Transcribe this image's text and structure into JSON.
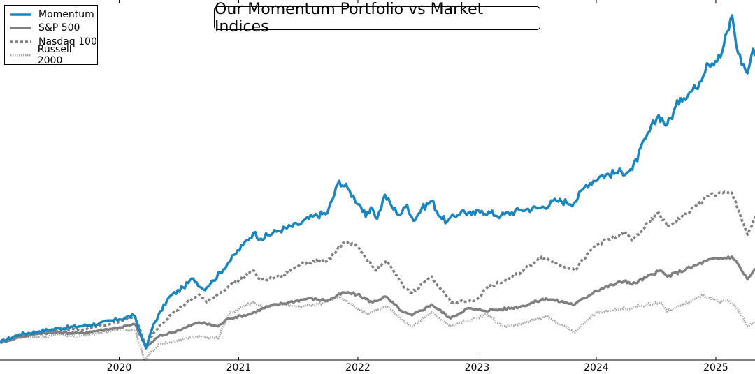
{
  "chart_data": {
    "type": "line",
    "title": "Our Momentum Portfolio vs Market Indices",
    "xlabel": "",
    "ylabel": "",
    "x_ticks": [
      "2020",
      "2021",
      "2022",
      "2023",
      "2024",
      "2025"
    ],
    "y_ticks_shown": false,
    "legend_position": "top-left",
    "x_range": [
      "2019-01",
      "2025-05"
    ],
    "y_range": [
      0.85,
      4.4
    ],
    "series": [
      {
        "name": "Momentum",
        "color": "#1a86c0",
        "style": "solid",
        "points": [
          [
            "2019-01-01",
            1.0
          ],
          [
            "2019-03-01",
            1.08
          ],
          [
            "2019-05-01",
            1.11
          ],
          [
            "2019-07-01",
            1.14
          ],
          [
            "2019-09-01",
            1.16
          ],
          [
            "2019-11-01",
            1.19
          ],
          [
            "2020-01-01",
            1.23
          ],
          [
            "2020-02-15",
            1.27
          ],
          [
            "2020-03-23",
            0.94
          ],
          [
            "2020-04-15",
            1.18
          ],
          [
            "2020-06-01",
            1.45
          ],
          [
            "2020-07-15",
            1.55
          ],
          [
            "2020-08-15",
            1.64
          ],
          [
            "2020-09-15",
            1.53
          ],
          [
            "2020-10-15",
            1.62
          ],
          [
            "2020-12-01",
            1.8
          ],
          [
            "2021-01-15",
            1.98
          ],
          [
            "2021-02-15",
            2.1
          ],
          [
            "2021-03-10",
            2.04
          ],
          [
            "2021-05-01",
            2.12
          ],
          [
            "2021-07-01",
            2.18
          ],
          [
            "2021-08-15",
            2.26
          ],
          [
            "2021-09-30",
            2.3
          ],
          [
            "2021-11-05",
            2.62
          ],
          [
            "2021-12-01",
            2.54
          ],
          [
            "2022-01-10",
            2.36
          ],
          [
            "2022-01-25",
            2.26
          ],
          [
            "2022-02-15",
            2.34
          ],
          [
            "2022-03-01",
            2.24
          ],
          [
            "2022-03-25",
            2.48
          ],
          [
            "2022-04-15",
            2.36
          ],
          [
            "2022-05-10",
            2.28
          ],
          [
            "2022-06-01",
            2.38
          ],
          [
            "2022-06-20",
            2.22
          ],
          [
            "2022-07-15",
            2.34
          ],
          [
            "2022-08-15",
            2.42
          ],
          [
            "2022-09-10",
            2.26
          ],
          [
            "2022-10-01",
            2.21
          ],
          [
            "2022-11-15",
            2.32
          ],
          [
            "2022-12-15",
            2.28
          ],
          [
            "2023-01-15",
            2.32
          ],
          [
            "2023-03-15",
            2.27
          ],
          [
            "2023-05-15",
            2.33
          ],
          [
            "2023-07-15",
            2.35
          ],
          [
            "2023-09-01",
            2.42
          ],
          [
            "2023-10-25",
            2.4
          ],
          [
            "2023-12-01",
            2.58
          ],
          [
            "2024-01-15",
            2.67
          ],
          [
            "2024-03-01",
            2.7
          ],
          [
            "2024-04-20",
            2.73
          ],
          [
            "2024-06-01",
            3.05
          ],
          [
            "2024-07-10",
            3.28
          ],
          [
            "2024-08-05",
            3.18
          ],
          [
            "2024-09-15",
            3.45
          ],
          [
            "2024-11-01",
            3.55
          ],
          [
            "2024-12-05",
            3.8
          ],
          [
            "2025-01-15",
            3.86
          ],
          [
            "2025-02-20",
            4.28
          ],
          [
            "2025-03-10",
            3.9
          ],
          [
            "2025-04-08",
            3.7
          ],
          [
            "2025-04-20",
            3.88
          ],
          [
            "2025-05-15",
            4.02
          ]
        ]
      },
      {
        "name": "S&P 500",
        "color": "#808080",
        "style": "solid",
        "points": [
          [
            "2019-01-01",
            1.0
          ],
          [
            "2019-03-01",
            1.05
          ],
          [
            "2019-05-01",
            1.09
          ],
          [
            "2019-07-01",
            1.1
          ],
          [
            "2019-09-01",
            1.09
          ],
          [
            "2019-11-01",
            1.12
          ],
          [
            "2020-01-01",
            1.15
          ],
          [
            "2020-02-19",
            1.18
          ],
          [
            "2020-03-23",
            0.95
          ],
          [
            "2020-05-01",
            1.06
          ],
          [
            "2020-07-01",
            1.12
          ],
          [
            "2020-09-01",
            1.2
          ],
          [
            "2020-10-30",
            1.16
          ],
          [
            "2020-12-01",
            1.24
          ],
          [
            "2021-02-01",
            1.28
          ],
          [
            "2021-04-01",
            1.36
          ],
          [
            "2021-06-01",
            1.4
          ],
          [
            "2021-08-01",
            1.44
          ],
          [
            "2021-10-01",
            1.42
          ],
          [
            "2021-11-20",
            1.5
          ],
          [
            "2021-12-30",
            1.48
          ],
          [
            "2022-02-15",
            1.4
          ],
          [
            "2022-03-25",
            1.46
          ],
          [
            "2022-05-20",
            1.3
          ],
          [
            "2022-06-16",
            1.27
          ],
          [
            "2022-08-15",
            1.38
          ],
          [
            "2022-10-12",
            1.24
          ],
          [
            "2022-12-01",
            1.34
          ],
          [
            "2023-01-15",
            1.32
          ],
          [
            "2023-03-15",
            1.33
          ],
          [
            "2023-05-15",
            1.36
          ],
          [
            "2023-07-31",
            1.44
          ],
          [
            "2023-10-27",
            1.38
          ],
          [
            "2023-12-31",
            1.52
          ],
          [
            "2024-03-31",
            1.62
          ],
          [
            "2024-04-19",
            1.58
          ],
          [
            "2024-07-15",
            1.72
          ],
          [
            "2024-08-05",
            1.66
          ],
          [
            "2024-10-15",
            1.75
          ],
          [
            "2024-12-05",
            1.82
          ],
          [
            "2025-02-19",
            1.86
          ],
          [
            "2025-03-15",
            1.76
          ],
          [
            "2025-04-08",
            1.63
          ],
          [
            "2025-04-30",
            1.73
          ],
          [
            "2025-05-15",
            1.78
          ]
        ]
      },
      {
        "name": "Nasdaq 100",
        "color": "#808080",
        "style": "dashed",
        "points": [
          [
            "2019-01-01",
            1.0
          ],
          [
            "2019-03-01",
            1.06
          ],
          [
            "2019-05-01",
            1.1
          ],
          [
            "2019-07-01",
            1.14
          ],
          [
            "2019-09-01",
            1.12
          ],
          [
            "2019-11-01",
            1.16
          ],
          [
            "2020-01-01",
            1.21
          ],
          [
            "2020-02-19",
            1.26
          ],
          [
            "2020-03-20",
            0.98
          ],
          [
            "2020-05-01",
            1.16
          ],
          [
            "2020-06-15",
            1.3
          ],
          [
            "2020-09-02",
            1.48
          ],
          [
            "2020-09-25",
            1.4
          ],
          [
            "2020-12-01",
            1.56
          ],
          [
            "2021-02-15",
            1.72
          ],
          [
            "2021-03-08",
            1.62
          ],
          [
            "2021-05-12",
            1.66
          ],
          [
            "2021-07-15",
            1.8
          ],
          [
            "2021-09-30",
            1.82
          ],
          [
            "2021-11-19",
            2.0
          ],
          [
            "2021-12-30",
            1.96
          ],
          [
            "2022-02-24",
            1.72
          ],
          [
            "2022-03-29",
            1.82
          ],
          [
            "2022-05-20",
            1.56
          ],
          [
            "2022-06-16",
            1.5
          ],
          [
            "2022-08-15",
            1.66
          ],
          [
            "2022-10-13",
            1.4
          ],
          [
            "2022-12-28",
            1.42
          ],
          [
            "2023-02-01",
            1.55
          ],
          [
            "2023-04-15",
            1.64
          ],
          [
            "2023-07-18",
            1.86
          ],
          [
            "2023-10-26",
            1.72
          ],
          [
            "2023-12-31",
            1.98
          ],
          [
            "2024-03-31",
            2.1
          ],
          [
            "2024-04-19",
            2.02
          ],
          [
            "2024-07-10",
            2.3
          ],
          [
            "2024-08-05",
            2.16
          ],
          [
            "2024-10-15",
            2.32
          ],
          [
            "2024-12-15",
            2.48
          ],
          [
            "2025-02-19",
            2.5
          ],
          [
            "2025-03-15",
            2.3
          ],
          [
            "2025-04-08",
            2.08
          ],
          [
            "2025-04-30",
            2.24
          ],
          [
            "2025-05-15",
            2.32
          ]
        ]
      },
      {
        "name": "Russell 2000",
        "color": "#a6a6a6",
        "style": "dotted",
        "points": [
          [
            "2019-01-01",
            1.0
          ],
          [
            "2019-03-01",
            1.06
          ],
          [
            "2019-05-01",
            1.05
          ],
          [
            "2019-07-01",
            1.08
          ],
          [
            "2019-09-01",
            1.06
          ],
          [
            "2019-11-01",
            1.1
          ],
          [
            "2020-01-15",
            1.13
          ],
          [
            "2020-02-20",
            1.12
          ],
          [
            "2020-03-18",
            0.82
          ],
          [
            "2020-05-01",
            0.98
          ],
          [
            "2020-07-01",
            1.02
          ],
          [
            "2020-09-01",
            1.06
          ],
          [
            "2020-10-30",
            1.04
          ],
          [
            "2020-12-01",
            1.28
          ],
          [
            "2021-02-10",
            1.4
          ],
          [
            "2021-03-20",
            1.34
          ],
          [
            "2021-05-01",
            1.38
          ],
          [
            "2021-07-01",
            1.36
          ],
          [
            "2021-09-01",
            1.38
          ],
          [
            "2021-11-08",
            1.46
          ],
          [
            "2021-12-20",
            1.36
          ],
          [
            "2022-02-01",
            1.28
          ],
          [
            "2022-03-29",
            1.36
          ],
          [
            "2022-05-20",
            1.22
          ],
          [
            "2022-06-16",
            1.16
          ],
          [
            "2022-08-15",
            1.3
          ],
          [
            "2022-10-10",
            1.16
          ],
          [
            "2022-12-01",
            1.22
          ],
          [
            "2023-02-01",
            1.28
          ],
          [
            "2023-03-20",
            1.16
          ],
          [
            "2023-05-15",
            1.18
          ],
          [
            "2023-07-31",
            1.26
          ],
          [
            "2023-10-27",
            1.1
          ],
          [
            "2023-12-31",
            1.3
          ],
          [
            "2024-03-31",
            1.34
          ],
          [
            "2024-07-16",
            1.4
          ],
          [
            "2024-08-05",
            1.31
          ],
          [
            "2024-11-25",
            1.47
          ],
          [
            "2025-01-15",
            1.4
          ],
          [
            "2025-02-10",
            1.42
          ],
          [
            "2025-03-15",
            1.3
          ],
          [
            "2025-04-08",
            1.16
          ],
          [
            "2025-05-15",
            1.24
          ]
        ]
      }
    ]
  }
}
